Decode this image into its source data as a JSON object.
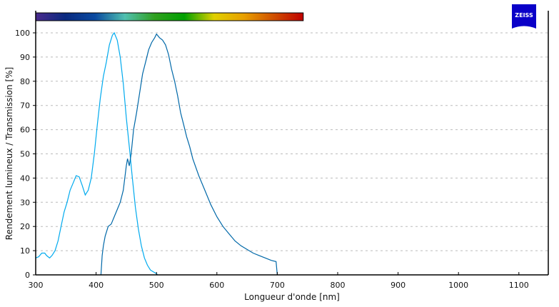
{
  "logo": {
    "text": "ZEISS",
    "color": "#0a00c8"
  },
  "chart_data": {
    "type": "line",
    "title": "",
    "xlabel": "Longueur d'onde [nm]",
    "ylabel": "Rendement lumineux / Transmission [%]",
    "xlim": [
      300,
      1150
    ],
    "ylim": [
      0,
      100
    ],
    "xticks": [
      300,
      400,
      500,
      600,
      700,
      800,
      900,
      1000,
      1100
    ],
    "yticks": [
      0,
      10,
      20,
      30,
      40,
      50,
      60,
      70,
      80,
      90,
      100
    ],
    "grid": "horizontal dashed",
    "legend": "none",
    "spectrum_bar": {
      "range_nm": [
        300,
        743
      ],
      "colors": [
        "#4a2a8c",
        "#0a2a80",
        "#0a4aa0",
        "#50c0b0",
        "#30a020",
        "#00a000",
        "#e0d000",
        "#e8a000",
        "#d05000",
        "#c00000"
      ]
    },
    "series": [
      {
        "color": "#00aaee",
        "points": [
          [
            300,
            7
          ],
          [
            305,
            7.5
          ],
          [
            310,
            9
          ],
          [
            315,
            9
          ],
          [
            318,
            8
          ],
          [
            323,
            7
          ],
          [
            327,
            8
          ],
          [
            332,
            10
          ],
          [
            337,
            14
          ],
          [
            342,
            20
          ],
          [
            347,
            26
          ],
          [
            352,
            30
          ],
          [
            357,
            35
          ],
          [
            362,
            38
          ],
          [
            367,
            41
          ],
          [
            372,
            40.5
          ],
          [
            377,
            37
          ],
          [
            382,
            33
          ],
          [
            387,
            35
          ],
          [
            392,
            40
          ],
          [
            397,
            50
          ],
          [
            402,
            62
          ],
          [
            407,
            73
          ],
          [
            412,
            82
          ],
          [
            417,
            88
          ],
          [
            422,
            95
          ],
          [
            427,
            99
          ],
          [
            430,
            100
          ],
          [
            435,
            97
          ],
          [
            440,
            90
          ],
          [
            445,
            79
          ],
          [
            450,
            65
          ],
          [
            455,
            53
          ],
          [
            460,
            40
          ],
          [
            465,
            28
          ],
          [
            470,
            19
          ],
          [
            475,
            12
          ],
          [
            480,
            7
          ],
          [
            485,
            4
          ],
          [
            490,
            2
          ],
          [
            495,
            1.2
          ],
          [
            500,
            0.5
          ],
          [
            502,
            0
          ]
        ]
      },
      {
        "color": "#0068a8",
        "points": [
          [
            408,
            0
          ],
          [
            410,
            8
          ],
          [
            412,
            12
          ],
          [
            415,
            16
          ],
          [
            420,
            20
          ],
          [
            425,
            21
          ],
          [
            430,
            24
          ],
          [
            435,
            27
          ],
          [
            440,
            30
          ],
          [
            445,
            35
          ],
          [
            450,
            45
          ],
          [
            452,
            48
          ],
          [
            455,
            45
          ],
          [
            458,
            50
          ],
          [
            462,
            60
          ],
          [
            467,
            67
          ],
          [
            472,
            75
          ],
          [
            477,
            83
          ],
          [
            482,
            88
          ],
          [
            487,
            93
          ],
          [
            492,
            96
          ],
          [
            497,
            98
          ],
          [
            500,
            99.5
          ],
          [
            505,
            98
          ],
          [
            510,
            97
          ],
          [
            515,
            95
          ],
          [
            520,
            91
          ],
          [
            525,
            85
          ],
          [
            530,
            80
          ],
          [
            535,
            74
          ],
          [
            540,
            67
          ],
          [
            545,
            62
          ],
          [
            550,
            57
          ],
          [
            555,
            53
          ],
          [
            560,
            48
          ],
          [
            570,
            41
          ],
          [
            580,
            35
          ],
          [
            590,
            29
          ],
          [
            600,
            24
          ],
          [
            610,
            20
          ],
          [
            620,
            17
          ],
          [
            630,
            14
          ],
          [
            640,
            12
          ],
          [
            650,
            10.5
          ],
          [
            660,
            9
          ],
          [
            670,
            8
          ],
          [
            680,
            7
          ],
          [
            690,
            6
          ],
          [
            698,
            5.5
          ],
          [
            700,
            0
          ]
        ]
      }
    ]
  }
}
